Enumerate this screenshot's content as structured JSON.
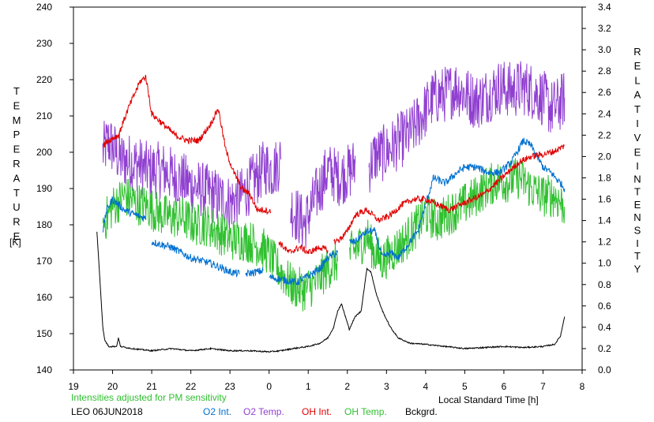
{
  "chart_data": {
    "type": "line",
    "x_axis": {
      "label": "Local Standard Time [h]",
      "tick_labels": [
        "19",
        "20",
        "21",
        "22",
        "23",
        "0",
        "1",
        "2",
        "3",
        "4",
        "5",
        "6",
        "7",
        "8"
      ],
      "range_hours_since_1900": [
        19,
        32
      ]
    },
    "y_left": {
      "title_letters": [
        "T",
        "E",
        "M",
        "P",
        "E",
        "R",
        "A",
        "T",
        "U",
        "R",
        "E"
      ],
      "unit": "[K]",
      "range": [
        140,
        240
      ],
      "ticks": [
        "140",
        "150",
        "160",
        "170",
        "180",
        "190",
        "200",
        "210",
        "220",
        "230",
        "240"
      ]
    },
    "y_right": {
      "title_letters_top": [
        "R",
        "E",
        "L",
        "A",
        "T",
        "I",
        "V",
        "E"
      ],
      "title_letters_bottom": [
        "I",
        "N",
        "T",
        "E",
        "N",
        "S",
        "I",
        "T",
        "Y"
      ],
      "range": [
        0,
        3.4
      ],
      "ticks": [
        "0.0",
        "0.2",
        "0.4",
        "0.6",
        "0.8",
        "1.0",
        "1.2",
        "1.4",
        "1.6",
        "1.8",
        "2.0",
        "2.2",
        "2.4",
        "2.6",
        "2.8",
        "3.0",
        "3.2",
        "3.4"
      ]
    },
    "note": "Intensities adjusted for PM sensitivity",
    "station": "LEO 06JUN2018",
    "legend": [
      {
        "key": "o2int",
        "label": "O2 Int."
      },
      {
        "key": "o2temp",
        "label": "O2 Temp."
      },
      {
        "key": "ohint",
        "label": "OH Int."
      },
      {
        "key": "ohtemp",
        "label": "OH Temp."
      },
      {
        "key": "bkg",
        "label": "Bckgrd."
      }
    ],
    "series": [
      {
        "name": "O2 Int.",
        "key": "o2int",
        "axis": "right",
        "color": "#0070d0",
        "noise": 0.035,
        "segments": [
          [
            [
              19.75,
              1.3
            ],
            [
              19.85,
              1.5
            ],
            [
              20.0,
              1.6
            ],
            [
              20.3,
              1.5
            ],
            [
              20.6,
              1.45
            ],
            [
              20.85,
              1.42
            ]
          ],
          [
            [
              21.0,
              1.2
            ],
            [
              21.5,
              1.15
            ],
            [
              22.0,
              1.05
            ],
            [
              22.5,
              1.0
            ],
            [
              23.0,
              0.92
            ],
            [
              23.25,
              0.9
            ]
          ],
          [
            [
              23.4,
              0.9
            ],
            [
              23.7,
              0.92
            ],
            [
              23.85,
              0.93
            ]
          ],
          [
            [
              24.0,
              0.87
            ],
            [
              24.3,
              0.85
            ],
            [
              24.7,
              0.82
            ],
            [
              25.0,
              0.88
            ],
            [
              25.3,
              0.95
            ],
            [
              25.5,
              1.05
            ],
            [
              25.75,
              1.1
            ]
          ],
          [
            [
              26.05,
              1.2
            ],
            [
              26.2,
              1.2
            ],
            [
              26.5,
              1.3
            ],
            [
              26.7,
              1.3
            ],
            [
              26.9,
              1.05
            ],
            [
              27.1,
              1.1
            ],
            [
              27.3,
              1.05
            ],
            [
              27.5,
              1.15
            ],
            [
              27.8,
              1.3
            ],
            [
              28.0,
              1.55
            ],
            [
              28.2,
              1.8
            ],
            [
              28.5,
              1.75
            ],
            [
              28.8,
              1.85
            ],
            [
              29.0,
              1.9
            ],
            [
              29.3,
              1.9
            ],
            [
              29.6,
              1.85
            ],
            [
              29.9,
              1.85
            ],
            [
              30.2,
              1.95
            ],
            [
              30.5,
              2.15
            ],
            [
              30.7,
              2.1
            ],
            [
              31.0,
              1.9
            ],
            [
              31.2,
              1.85
            ],
            [
              31.45,
              1.75
            ],
            [
              31.55,
              1.7
            ]
          ]
        ]
      },
      {
        "name": "O2 Temp.",
        "key": "o2temp",
        "axis": "left",
        "color": "#9040d0",
        "noise": 8,
        "segments": [
          [
            [
              19.75,
              200
            ],
            [
              19.9,
              203
            ],
            [
              20.2,
              198
            ],
            [
              20.6,
              197
            ],
            [
              20.9,
              195
            ],
            [
              21.3,
              195
            ],
            [
              21.8,
              192
            ],
            [
              22.2,
              190
            ],
            [
              22.6,
              188
            ],
            [
              23.0,
              186
            ],
            [
              23.3,
              188
            ],
            [
              23.6,
              192
            ],
            [
              23.9,
              196
            ],
            [
              24.1,
              195
            ],
            [
              24.3,
              198
            ]
          ],
          [
            [
              24.55,
              185
            ],
            [
              24.9,
              180
            ],
            [
              25.2,
              188
            ],
            [
              25.5,
              195
            ],
            [
              25.8,
              193
            ],
            [
              26.1,
              195
            ],
            [
              26.2,
              197
            ]
          ],
          [
            [
              26.55,
              196
            ],
            [
              26.7,
              199
            ],
            [
              27.0,
              200
            ],
            [
              27.3,
              203
            ],
            [
              27.6,
              205
            ],
            [
              27.9,
              210
            ],
            [
              28.2,
              215
            ],
            [
              28.5,
              216
            ],
            [
              28.8,
              218
            ],
            [
              29.0,
              216
            ],
            [
              29.3,
              214
            ],
            [
              29.6,
              216
            ],
            [
              29.9,
              218
            ],
            [
              30.2,
              217
            ],
            [
              30.5,
              218
            ],
            [
              30.7,
              217
            ],
            [
              31.0,
              215
            ],
            [
              31.2,
              212
            ],
            [
              31.4,
              213
            ],
            [
              31.55,
              215
            ]
          ]
        ]
      },
      {
        "name": "OH Int.",
        "key": "ohint",
        "axis": "right",
        "color": "#e00000",
        "noise": 0.03,
        "segments": [
          [
            [
              19.75,
              2.1
            ],
            [
              19.9,
              2.15
            ],
            [
              20.15,
              2.2
            ],
            [
              20.4,
              2.45
            ],
            [
              20.7,
              2.7
            ],
            [
              20.85,
              2.75
            ],
            [
              21.0,
              2.4
            ],
            [
              21.3,
              2.3
            ],
            [
              21.6,
              2.2
            ],
            [
              21.9,
              2.15
            ],
            [
              22.2,
              2.15
            ],
            [
              22.5,
              2.3
            ],
            [
              22.7,
              2.45
            ],
            [
              22.9,
              2.05
            ],
            [
              23.1,
              1.85
            ],
            [
              23.3,
              1.7
            ],
            [
              23.5,
              1.65
            ],
            [
              23.7,
              1.5
            ],
            [
              23.9,
              1.5
            ],
            [
              24.05,
              1.48
            ]
          ],
          [
            [
              24.25,
              1.2
            ],
            [
              24.5,
              1.1
            ],
            [
              24.8,
              1.15
            ],
            [
              25.0,
              1.1
            ],
            [
              25.3,
              1.15
            ],
            [
              25.5,
              1.12
            ]
          ],
          [
            [
              25.65,
              1.2
            ],
            [
              25.8,
              1.22
            ],
            [
              26.0,
              1.3
            ],
            [
              26.2,
              1.45
            ],
            [
              26.5,
              1.5
            ],
            [
              26.8,
              1.4
            ],
            [
              27.1,
              1.45
            ],
            [
              27.4,
              1.55
            ],
            [
              27.7,
              1.6
            ],
            [
              28.0,
              1.6
            ],
            [
              28.3,
              1.55
            ],
            [
              28.6,
              1.5
            ],
            [
              28.9,
              1.55
            ],
            [
              29.2,
              1.6
            ],
            [
              29.5,
              1.65
            ],
            [
              29.8,
              1.75
            ],
            [
              30.1,
              1.85
            ],
            [
              30.4,
              1.95
            ],
            [
              30.7,
              2.0
            ],
            [
              31.0,
              2.02
            ],
            [
              31.3,
              2.05
            ],
            [
              31.55,
              2.1
            ]
          ]
        ]
      },
      {
        "name": "OH Temp.",
        "key": "ohtemp",
        "axis": "left",
        "color": "#30c030",
        "noise": 6,
        "segments": [
          [
            [
              19.75,
              180
            ],
            [
              20.0,
              185
            ],
            [
              20.3,
              188
            ],
            [
              20.6,
              186
            ],
            [
              20.9,
              185
            ],
            [
              21.2,
              183
            ],
            [
              21.5,
              182
            ],
            [
              21.8,
              182
            ],
            [
              22.1,
              180
            ],
            [
              22.4,
              180
            ],
            [
              22.7,
              178
            ],
            [
              23.0,
              176
            ],
            [
              23.3,
              176
            ],
            [
              23.6,
              175
            ],
            [
              23.9,
              173
            ],
            [
              24.1,
              170
            ],
            [
              24.3,
              167
            ],
            [
              24.6,
              163
            ],
            [
              24.9,
              162
            ],
            [
              25.2,
              164
            ],
            [
              25.5,
              168
            ],
            [
              25.75,
              170
            ]
          ],
          [
            [
              26.05,
              172
            ],
            [
              26.3,
              174
            ],
            [
              26.5,
              177
            ],
            [
              26.7,
              172
            ],
            [
              26.9,
              170
            ],
            [
              27.2,
              173
            ],
            [
              27.5,
              176
            ],
            [
              27.8,
              180
            ],
            [
              28.0,
              183
            ],
            [
              28.3,
              181
            ],
            [
              28.6,
              183
            ],
            [
              28.9,
              185
            ],
            [
              29.2,
              187
            ],
            [
              29.5,
              190
            ],
            [
              29.8,
              192
            ],
            [
              30.1,
              192
            ],
            [
              30.4,
              193
            ],
            [
              30.7,
              190
            ],
            [
              31.0,
              188
            ],
            [
              31.3,
              188
            ],
            [
              31.55,
              185
            ]
          ]
        ]
      },
      {
        "name": "Bckgrd.",
        "key": "bkg",
        "axis": "right",
        "color": "#000000",
        "noise": 0.006,
        "segments": [
          [
            [
              19.6,
              1.3
            ],
            [
              19.65,
              1.0
            ],
            [
              19.7,
              0.7
            ],
            [
              19.75,
              0.4
            ],
            [
              19.8,
              0.28
            ],
            [
              19.9,
              0.22
            ],
            [
              20.1,
              0.22
            ],
            [
              20.15,
              0.3
            ],
            [
              20.2,
              0.22
            ],
            [
              20.5,
              0.2
            ],
            [
              21.0,
              0.18
            ],
            [
              21.5,
              0.2
            ],
            [
              22.0,
              0.18
            ],
            [
              22.5,
              0.2
            ],
            [
              23.0,
              0.18
            ],
            [
              23.5,
              0.18
            ],
            [
              24.0,
              0.17
            ],
            [
              24.3,
              0.18
            ],
            [
              24.6,
              0.2
            ],
            [
              25.0,
              0.22
            ],
            [
              25.3,
              0.25
            ],
            [
              25.5,
              0.3
            ],
            [
              25.65,
              0.4
            ],
            [
              25.75,
              0.55
            ],
            [
              25.85,
              0.62
            ],
            [
              25.95,
              0.5
            ],
            [
              26.05,
              0.38
            ],
            [
              26.2,
              0.5
            ],
            [
              26.35,
              0.55
            ],
            [
              26.5,
              0.95
            ],
            [
              26.6,
              0.92
            ],
            [
              26.75,
              0.7
            ],
            [
              26.9,
              0.55
            ],
            [
              27.1,
              0.4
            ],
            [
              27.3,
              0.3
            ],
            [
              27.6,
              0.25
            ],
            [
              28.0,
              0.24
            ],
            [
              28.5,
              0.22
            ],
            [
              29.0,
              0.2
            ],
            [
              29.5,
              0.21
            ],
            [
              30.0,
              0.22
            ],
            [
              30.5,
              0.21
            ],
            [
              31.0,
              0.22
            ],
            [
              31.3,
              0.24
            ],
            [
              31.45,
              0.32
            ],
            [
              31.55,
              0.5
            ]
          ]
        ]
      }
    ]
  }
}
